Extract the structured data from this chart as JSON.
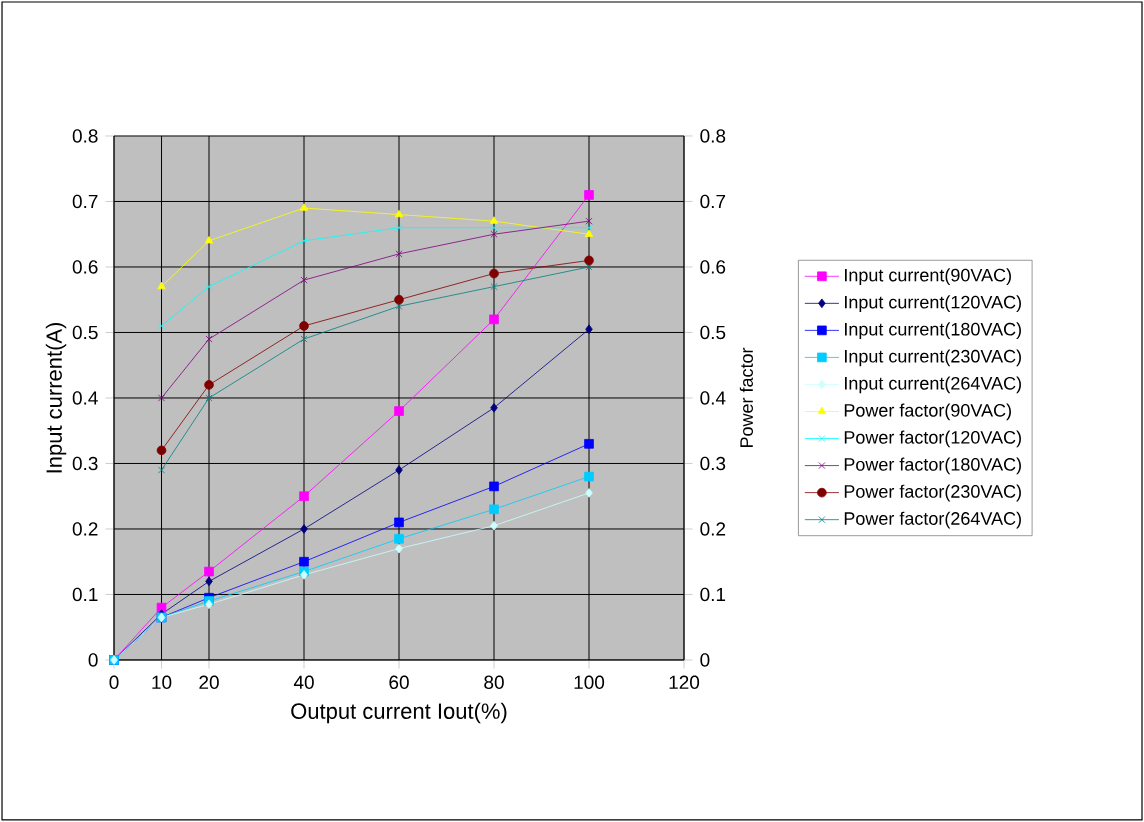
{
  "chart_data": {
    "type": "line",
    "xlabel": "Output current Iout(%)",
    "ylabel": "Input current(A)",
    "y2label": "Power factor",
    "x": [
      0,
      10,
      20,
      40,
      60,
      80,
      100
    ],
    "xlim": [
      0,
      120
    ],
    "xticks": [
      0,
      10,
      20,
      40,
      60,
      80,
      100,
      120
    ],
    "ylim": [
      0,
      0.8
    ],
    "yticks": [
      0,
      0.1,
      0.2,
      0.3,
      0.4,
      0.5,
      0.6,
      0.7,
      0.8
    ],
    "y2lim": [
      0,
      0.8
    ],
    "y2ticks": [
      0,
      0.1,
      0.2,
      0.3,
      0.4,
      0.5,
      0.6,
      0.7,
      0.8
    ],
    "grid": true,
    "legend": "right",
    "line_style": "solid",
    "series": [
      {
        "name": "Input current(90VAC)",
        "color": "#ff00ff",
        "marker": "square",
        "values": [
          0,
          0.08,
          0.135,
          0.25,
          0.38,
          0.52,
          0.71
        ]
      },
      {
        "name": "Input current(120VAC)",
        "color": "#000080",
        "marker": "diamond",
        "values": [
          0,
          0.07,
          0.12,
          0.2,
          0.29,
          0.385,
          0.505
        ]
      },
      {
        "name": "Input current(180VAC)",
        "color": "#0000ff",
        "marker": "square",
        "values": [
          0,
          0.065,
          0.095,
          0.15,
          0.21,
          0.265,
          0.33
        ]
      },
      {
        "name": "Input current(230VAC)",
        "color": "#00ccff",
        "marker": "square",
        "values": [
          0,
          0.065,
          0.09,
          0.135,
          0.185,
          0.23,
          0.28
        ]
      },
      {
        "name": "Input current(264VAC)",
        "color": "#ccffff",
        "marker": "diamond",
        "values": [
          0,
          0.065,
          0.085,
          0.13,
          0.17,
          0.205,
          0.255
        ]
      },
      {
        "name": "Power factor(90VAC)",
        "color": "#ffff00",
        "marker": "triangle",
        "axis": "y2",
        "values": [
          null,
          0.57,
          0.64,
          0.69,
          0.68,
          0.67,
          0.65
        ]
      },
      {
        "name": "Power factor(120VAC)",
        "color": "#00ffff",
        "marker": "cross",
        "axis": "y2",
        "values": [
          null,
          0.51,
          0.57,
          0.64,
          0.66,
          0.66,
          0.66
        ]
      },
      {
        "name": "Power factor(180VAC)",
        "color": "#800080",
        "marker": "cross",
        "axis": "y2",
        "values": [
          null,
          0.4,
          0.49,
          0.58,
          0.62,
          0.65,
          0.67
        ]
      },
      {
        "name": "Power factor(230VAC)",
        "color": "#800000",
        "marker": "circle",
        "axis": "y2",
        "values": [
          null,
          0.32,
          0.42,
          0.51,
          0.55,
          0.59,
          0.61
        ]
      },
      {
        "name": "Power factor(264VAC)",
        "color": "#008080",
        "marker": "cross",
        "axis": "y2",
        "values": [
          null,
          0.29,
          0.4,
          0.49,
          0.54,
          0.57,
          0.6
        ]
      }
    ]
  }
}
